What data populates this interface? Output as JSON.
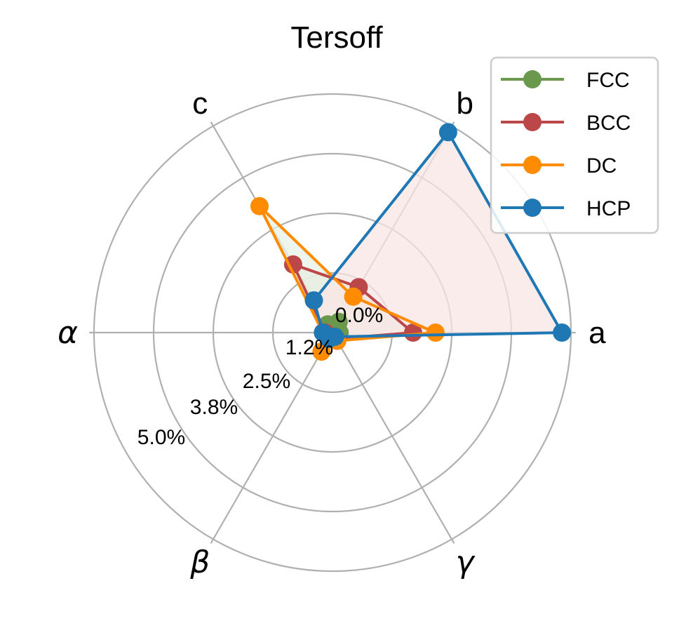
{
  "chart_data": {
    "type": "radar",
    "title": "Tersoff",
    "axes": [
      "a",
      "b",
      "c",
      "α",
      "β",
      "γ"
    ],
    "axis_angles_deg": [
      0,
      60,
      120,
      180,
      240,
      300
    ],
    "radial_ticks": [
      0.0,
      1.25,
      2.5,
      3.75,
      5.0
    ],
    "radial_tick_labels": [
      "0.0%",
      "1.2%",
      "2.5%",
      "3.8%",
      "5.0%"
    ],
    "rlim": [
      0,
      5.0
    ],
    "unit": "%",
    "grid": true,
    "legend_position": "upper right",
    "series": [
      {
        "name": "FCC",
        "color": "#6a994e",
        "fill": "#f2d9b8",
        "values": [
          0.15,
          0.26,
          0.2,
          0.1,
          0.1,
          0.1
        ]
      },
      {
        "name": "BCC",
        "color": "#bc4749",
        "fill": "#e6dcc8",
        "values": [
          1.69,
          1.1,
          1.65,
          0.15,
          0.15,
          0.15
        ]
      },
      {
        "name": "DC",
        "color": "#ff8c00",
        "fill": "#e8f2e6",
        "values": [
          2.16,
          0.87,
          3.06,
          0.2,
          0.46,
          0.2
        ]
      },
      {
        "name": "HCP",
        "color": "#1f77b4",
        "fill": "#f9e6e6",
        "values": [
          4.81,
          4.85,
          0.78,
          0.2,
          0.15,
          0.1
        ]
      }
    ]
  },
  "legend": {
    "items": [
      {
        "label": "FCC"
      },
      {
        "label": "BCC"
      },
      {
        "label": "DC"
      },
      {
        "label": "HCP"
      }
    ]
  }
}
